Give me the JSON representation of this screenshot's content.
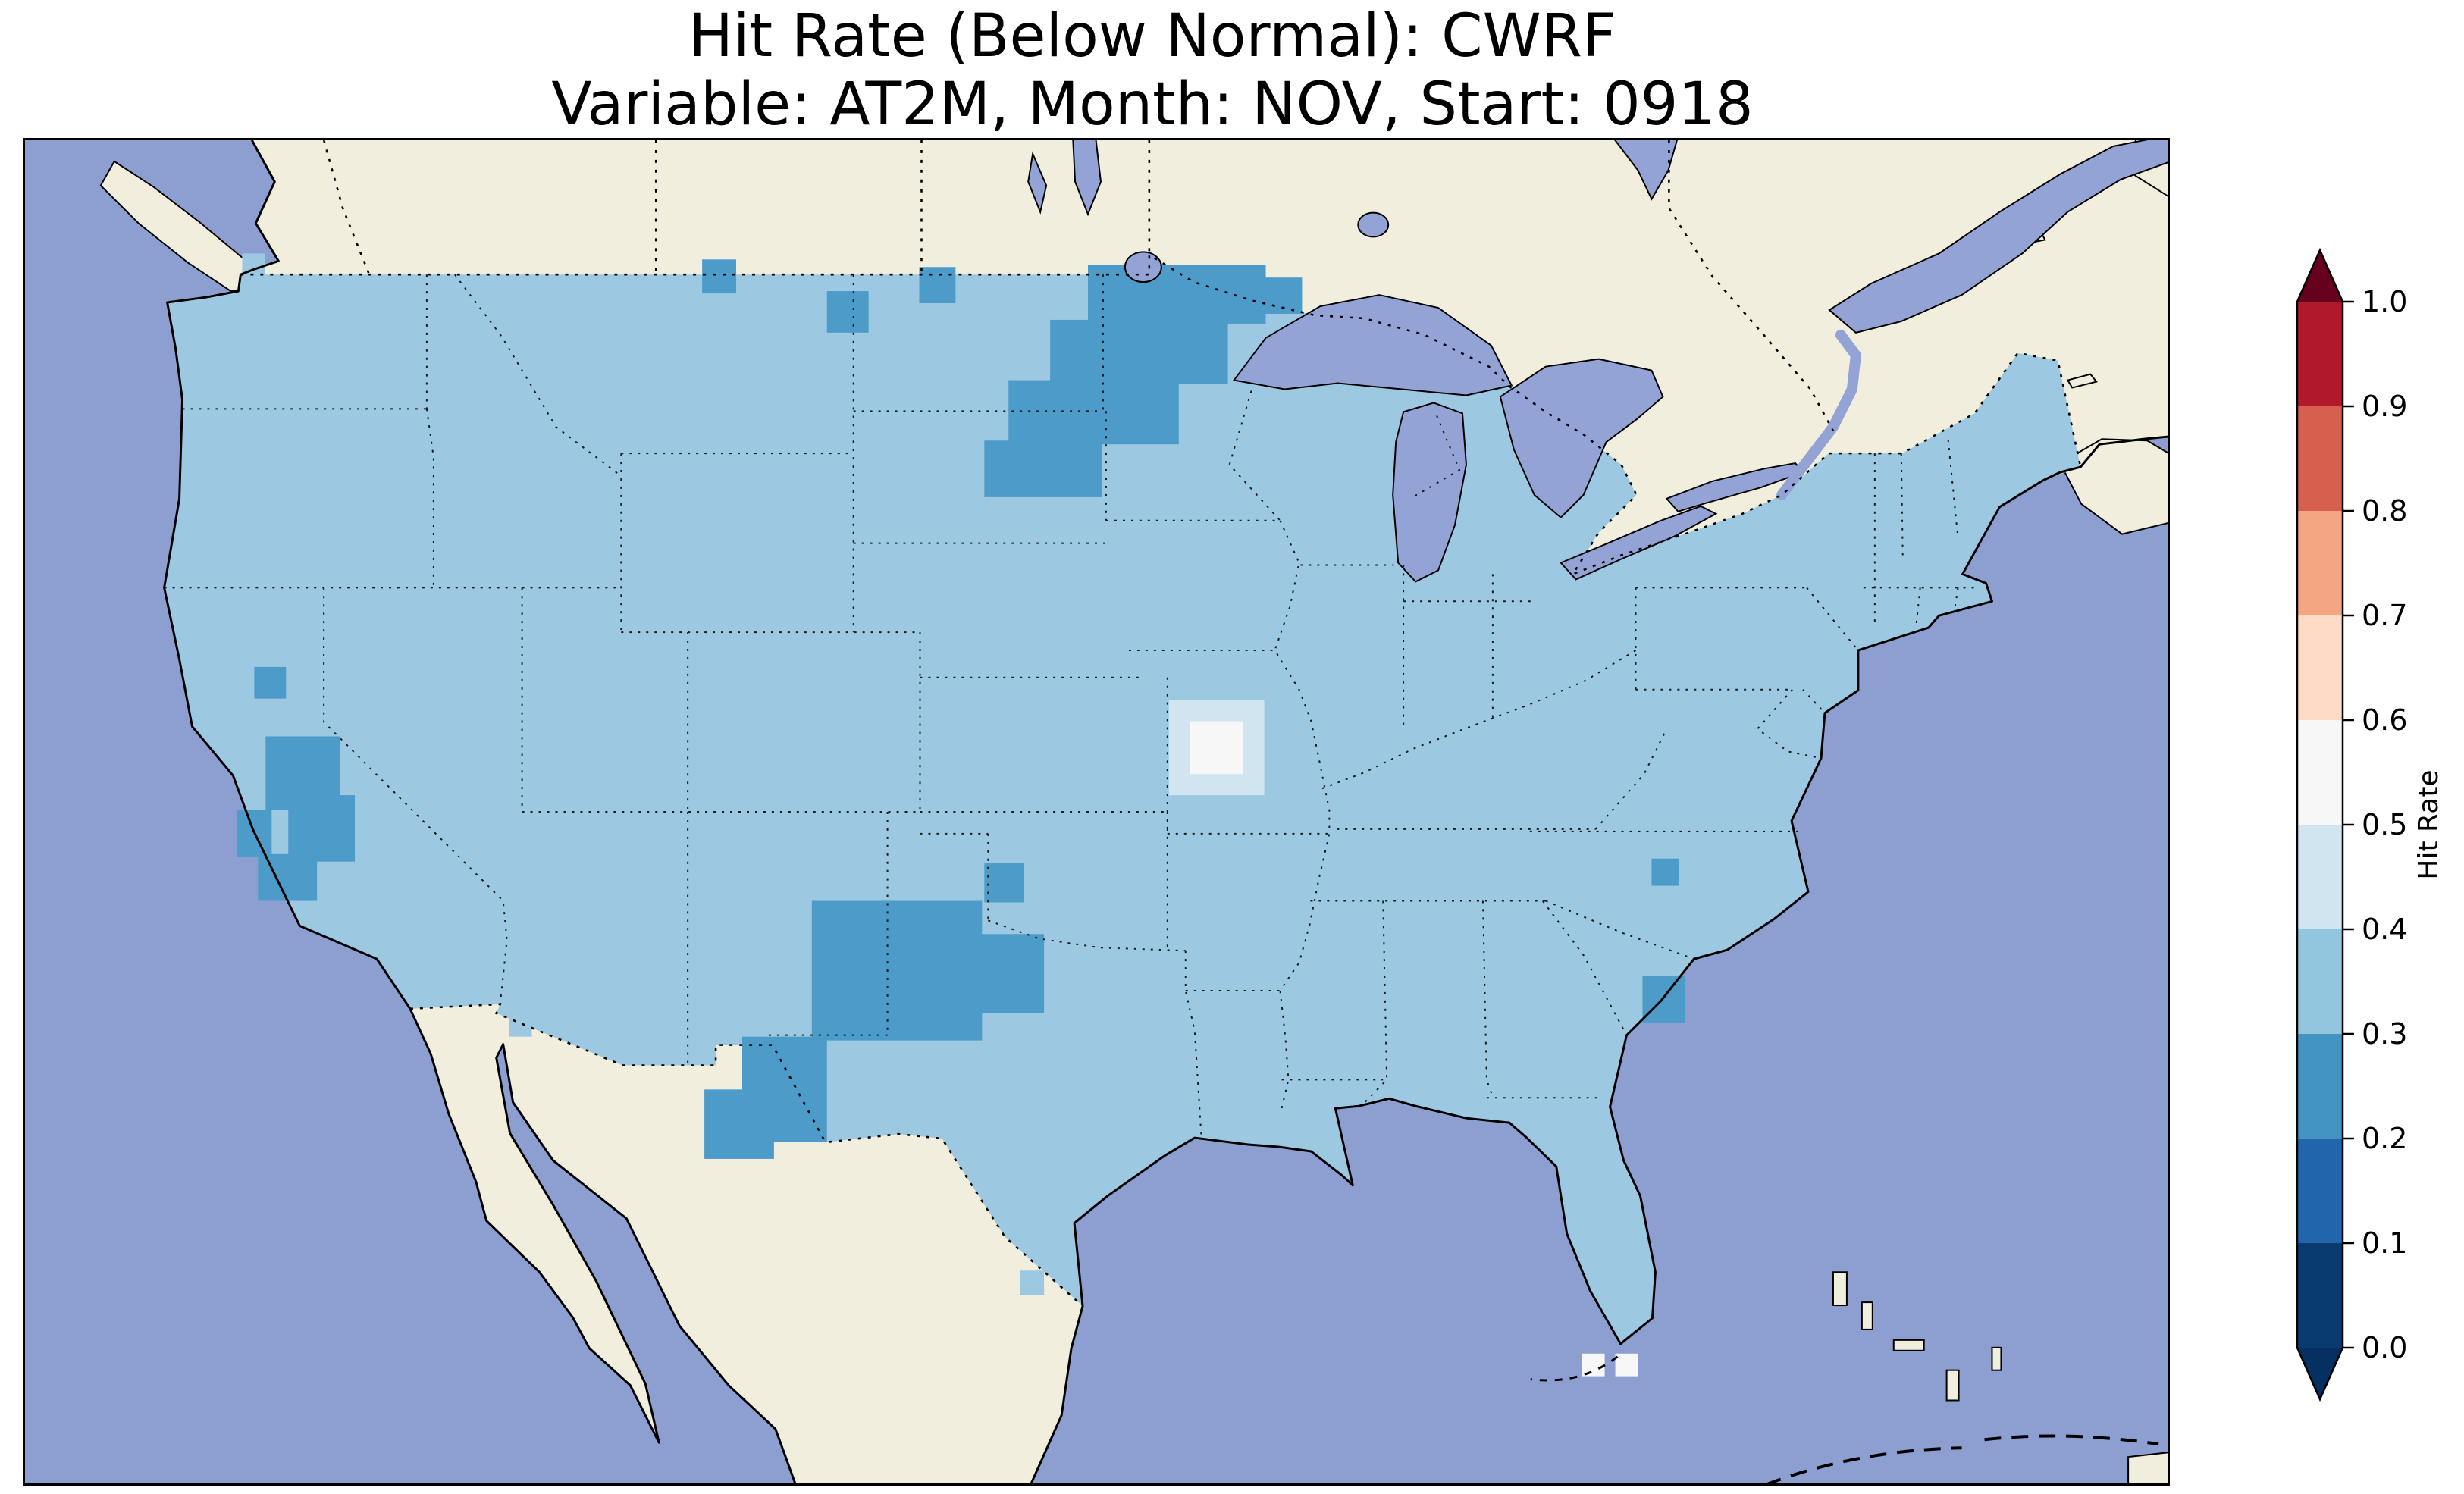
{
  "page": {
    "background": "#ffffff"
  },
  "header": {
    "title": "Hit Rate (Below Normal): CWRF",
    "subtitle": "Variable: AT2M, Month: NOV, Start: 0918"
  },
  "colors": {
    "background": "#ffffff",
    "ocean": "#8d9fd1",
    "land": "#f1eedd",
    "lake": "#93a3d6",
    "conus_base": "#9cc9e1",
    "bin_dark": "#4d9bc9",
    "bin_pale": "#d1e5f0",
    "bin_white": "#f6f7f6",
    "frame": "#000000"
  },
  "chart_data": {
    "type": "heatmap",
    "subtype": "choropleth_map",
    "title": "Hit Rate (Below Normal): CWRF",
    "subtitle": "Variable: AT2M, Month: NOV, Start: 0918",
    "metric": "Hit Rate",
    "category": "Below Normal",
    "model": "CWRF",
    "variable": "AT2M",
    "month": "NOV",
    "start": "0918",
    "region": "Continental United States",
    "colorbar": {
      "label": "Hit Rate",
      "orientation": "vertical",
      "ticks": [
        "1.0",
        "0.9",
        "0.8",
        "0.7",
        "0.6",
        "0.5",
        "0.4",
        "0.3",
        "0.2",
        "0.1",
        "0.0"
      ],
      "bin_colors_top_to_bottom": [
        "#b2182b",
        "#d6604d",
        "#f4a582",
        "#fddbc7",
        "#f7f7f7",
        "#d1e5f0",
        "#92c5de",
        "#4393c3",
        "#2166ac",
        "#0a3b70"
      ],
      "extend_above_color": "#67001f",
      "extend_below_color": "#053061"
    },
    "map": {
      "dominant_bin": "0.3-0.4",
      "features": [
        {
          "area": "Most of the continental United States",
          "hit_rate_bin": "0.3-0.4"
        },
        {
          "area": "Minnesota / eastern North Dakota / northeastern South Dakota",
          "hit_rate_bin": "0.2-0.3"
        },
        {
          "area": "Eastern New Mexico and West Texas",
          "hit_rate_bin": "0.2-0.3"
        },
        {
          "area": "Central California",
          "hit_rate_bin": "0.2-0.3"
        },
        {
          "area": "South Carolina coast",
          "hit_rate_bin": "0.2-0.3"
        },
        {
          "area": "Central Missouri cell",
          "hit_rate_bin": "0.5-0.6"
        },
        {
          "area": "Cells south of Florida",
          "hit_rate_bin": "0.5-0.6"
        }
      ],
      "patches": {
        "stray_base": [
          [
            640,
            1158,
            30,
            30
          ],
          [
            1315,
            1498,
            32,
            32
          ],
          [
            287,
            150,
            30,
            30
          ]
        ],
        "pale": [
          [
            1512,
            742,
            126,
            126
          ]
        ],
        "white": [
          [
            1540,
            770,
            70,
            70
          ],
          [
            2058,
            1608,
            30,
            30
          ],
          [
            2102,
            1608,
            30,
            30
          ]
        ],
        "dark": [
          [
            1405,
            165,
            235,
            78
          ],
          [
            1355,
            238,
            235,
            85
          ],
          [
            1300,
            318,
            225,
            85
          ],
          [
            1268,
            398,
            155,
            75
          ],
          [
            1640,
            182,
            48,
            48
          ],
          [
            1182,
            168,
            48,
            48
          ],
          [
            1060,
            200,
            55,
            55
          ],
          [
            895,
            158,
            45,
            45
          ],
          [
            1040,
            1008,
            225,
            185
          ],
          [
            1262,
            1052,
            85,
            105
          ],
          [
            948,
            1188,
            112,
            140
          ],
          [
            898,
            1258,
            92,
            92
          ],
          [
            1268,
            958,
            52,
            52
          ],
          [
            318,
            790,
            98,
            98
          ],
          [
            348,
            868,
            88,
            88
          ],
          [
            308,
            946,
            78,
            62
          ],
          [
            303,
            698,
            42,
            42
          ],
          [
            280,
            888,
            46,
            62
          ],
          [
            2138,
            1108,
            56,
            62
          ],
          [
            2150,
            952,
            36,
            36
          ]
        ]
      }
    }
  }
}
